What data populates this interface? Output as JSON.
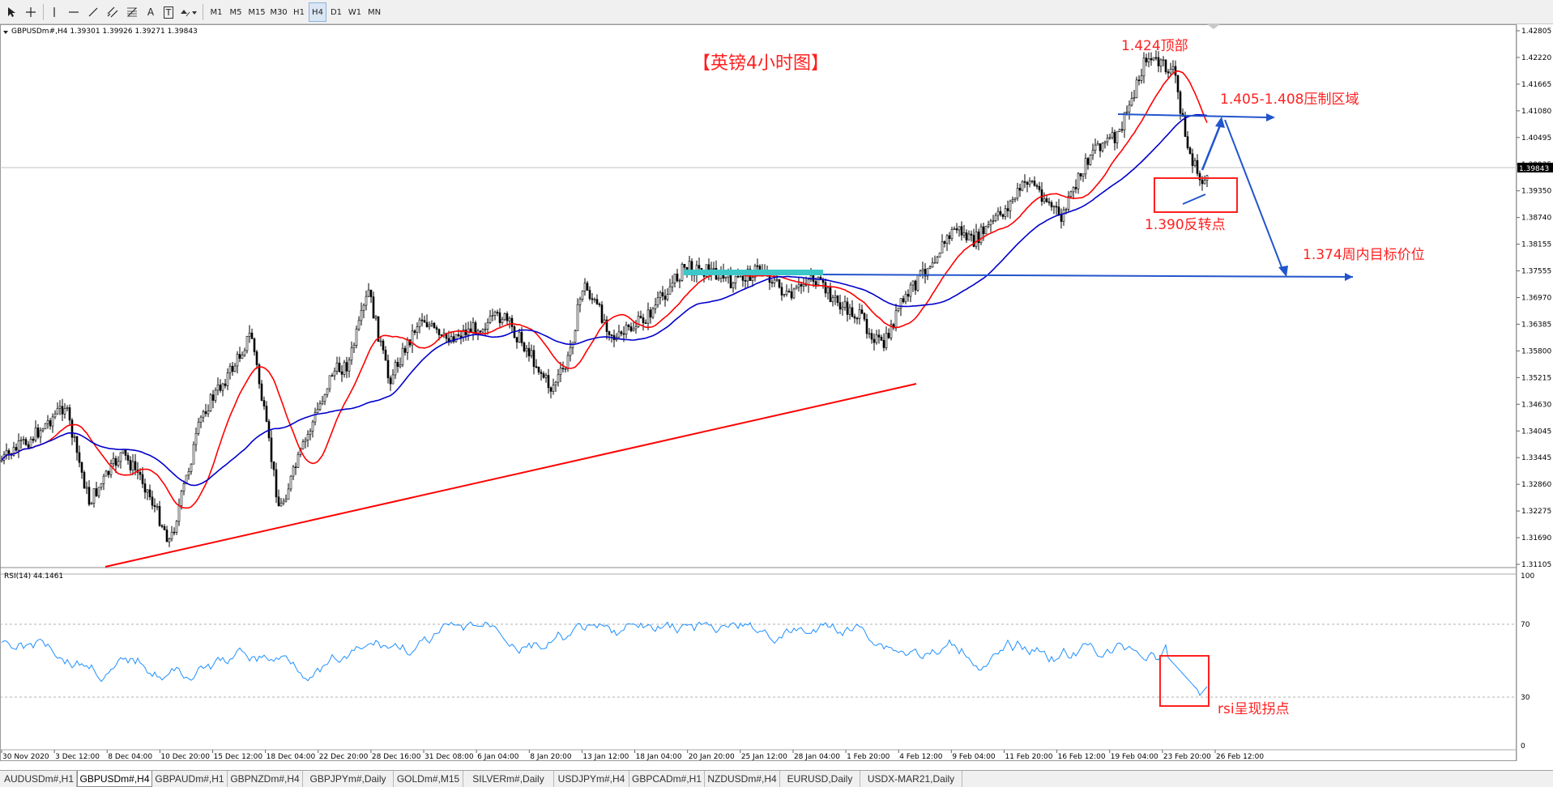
{
  "toolbar": {
    "timeframes": [
      "M1",
      "M5",
      "M15",
      "M30",
      "H1",
      "H4",
      "D1",
      "W1",
      "MN"
    ],
    "active_timeframe": "H4",
    "tools": [
      "cursor-icon",
      "crosshair-icon",
      "vertical-line-icon",
      "horizontal-line-icon",
      "trendline-icon",
      "channel-icon",
      "fibonacci-icon",
      "text-icon",
      "text-label-icon",
      "shapes-icon"
    ],
    "tool_text": {
      "text": "A",
      "label": "T"
    }
  },
  "chart": {
    "info_line": "GBPUSDm#,H4  1.39301 1.39926 1.39271 1.39843",
    "current_price": "1.39843",
    "price_axis": [
      "1.42805",
      "1.42220",
      "1.41665",
      "1.41080",
      "1.40495",
      "1.39935",
      "1.39350",
      "1.38740",
      "1.38155",
      "1.37555",
      "1.36970",
      "1.36385",
      "1.35800",
      "1.35215",
      "1.34630",
      "1.34045",
      "1.33445",
      "1.32860",
      "1.32275",
      "1.31690",
      "1.31105"
    ],
    "time_axis": [
      "30 Nov 2020",
      "3 Dec 12:00",
      "8 Dec 04:00",
      "10 Dec 20:00",
      "15 Dec 12:00",
      "18 Dec 04:00",
      "22 Dec 20:00",
      "28 Dec 16:00",
      "31 Dec 08:00",
      "6 Jan 04:00",
      "8 Jan 20:00",
      "13 Jan 12:00",
      "18 Jan 04:00",
      "20 Jan 20:00",
      "25 Jan 12:00",
      "28 Jan 04:00",
      "1 Feb 20:00",
      "4 Feb 12:00",
      "9 Feb 04:00",
      "11 Feb 20:00",
      "16 Feb 12:00",
      "19 Feb 04:00",
      "23 Feb 20:00",
      "26 Feb 12:00"
    ],
    "annotations": {
      "title": "【英镑4小时图】",
      "top": "1.424顶部",
      "resistance": "1.405-1.408压制区域",
      "reversal": "1.390反转点",
      "target": "1.374周内目标价位",
      "rsi_note": "rsi呈现拐点"
    },
    "colors": {
      "annotation": "#ff2020",
      "ma_fast": "#ff0000",
      "ma_slow": "#0000cc",
      "drawing": "#2255cc",
      "highlight_zone": "#3cc8c8",
      "rsi_line": "#1e90ff"
    }
  },
  "rsi": {
    "label": "RSI(14) 44.1461",
    "levels": [
      "100",
      "70",
      "30",
      "0"
    ]
  },
  "tabs": [
    "AUDUSDm#,H1",
    "GBPUSDm#,H4",
    "GBPAUDm#,H1",
    "GBPNZDm#,H4",
    "GBPJPYm#,Daily",
    "GOLDm#,M15",
    "SILVERm#,Daily",
    "USDJPYm#,H4",
    "GBPCADm#,H1",
    "NZDUSDm#,H4",
    "EURUSD,Daily",
    "USDX-MAR21,Daily"
  ],
  "active_tab": "GBPUSDm#,H4"
}
